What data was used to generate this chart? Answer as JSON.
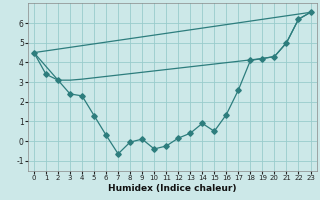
{
  "xlabel": "Humidex (Indice chaleur)",
  "bg_color": "#cce8e8",
  "line_color": "#2d7d7d",
  "grid_color": "#99cccc",
  "xlim": [
    -0.5,
    23.5
  ],
  "ylim": [
    -1.5,
    7.0
  ],
  "yticks": [
    -1,
    0,
    1,
    2,
    3,
    4,
    5,
    6
  ],
  "xticks": [
    0,
    1,
    2,
    3,
    4,
    5,
    6,
    7,
    8,
    9,
    10,
    11,
    12,
    13,
    14,
    15,
    16,
    17,
    18,
    19,
    20,
    21,
    22,
    23
  ],
  "line1_x": [
    0,
    1,
    2,
    3,
    4,
    5,
    6,
    7,
    8,
    9,
    10,
    11,
    12,
    13,
    14,
    15,
    16,
    17,
    18,
    19,
    20,
    21,
    22,
    23
  ],
  "line1_y": [
    4.5,
    3.4,
    3.1,
    2.4,
    2.3,
    1.3,
    0.3,
    -0.65,
    -0.05,
    0.1,
    -0.4,
    -0.25,
    0.15,
    0.4,
    0.9,
    0.5,
    1.35,
    2.6,
    4.1,
    4.2,
    4.3,
    5.0,
    6.2,
    6.55
  ],
  "line2_x": [
    0,
    23
  ],
  "line2_y": [
    4.5,
    6.55
  ],
  "line3_x": [
    0,
    2,
    3,
    4,
    19,
    20,
    21,
    22,
    23
  ],
  "line3_y": [
    4.5,
    3.1,
    3.1,
    3.15,
    4.2,
    4.3,
    5.0,
    6.2,
    6.55
  ]
}
